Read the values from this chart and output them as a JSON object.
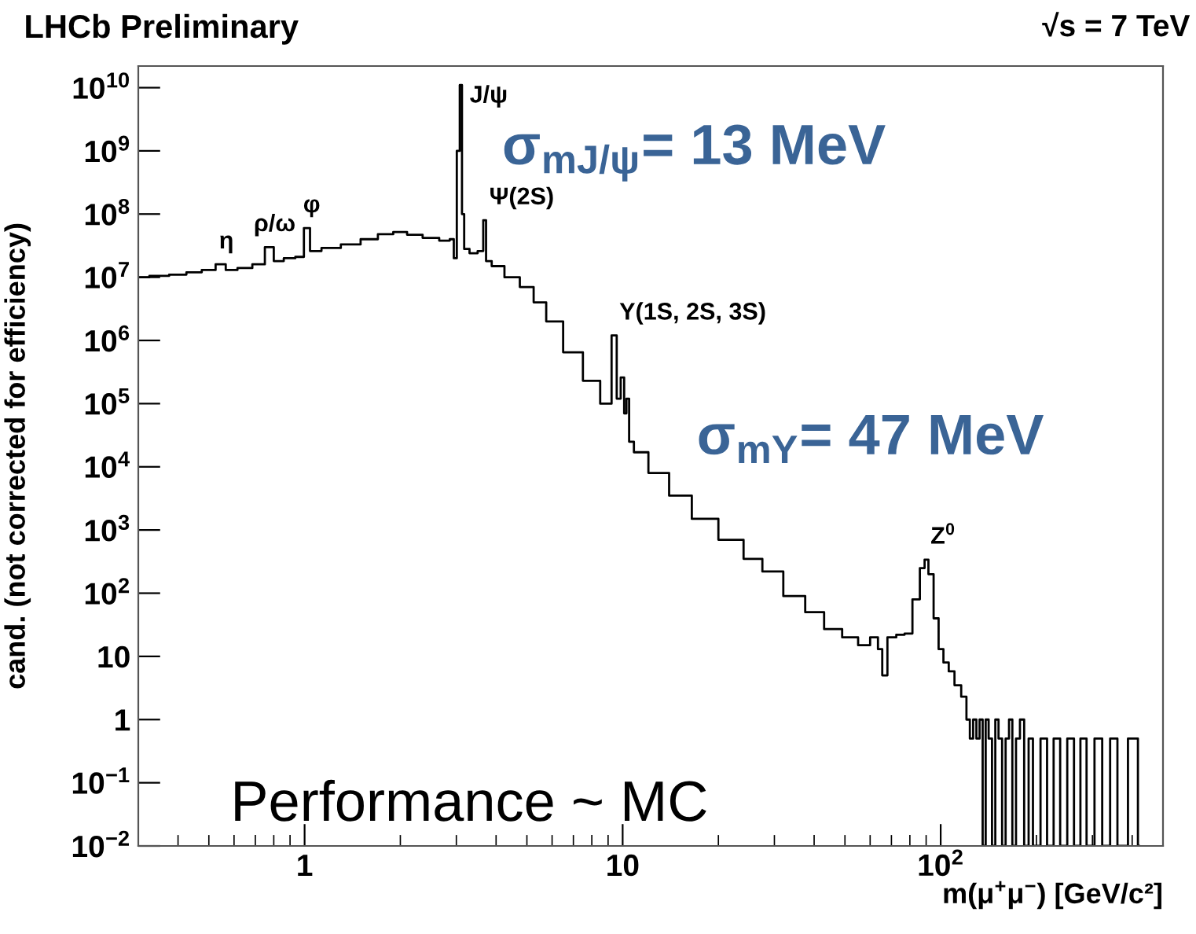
{
  "chart_data": {
    "type": "step",
    "title": "LHCb Preliminary",
    "ylabel": "cand. (not corrected for efficiency)",
    "xlabel": "m(μ$^{+}$μ$^{−}$) [GeV/c²]",
    "log": "xy",
    "grid": false,
    "xlim": [
      0.3,
      500
    ],
    "xticks": [
      1,
      10,
      {
        "value": 100,
        "label": "10$^{2}$"
      }
    ],
    "ylim": [
      0.01,
      22000000000.0
    ],
    "yticks": [
      {
        "value": 0.01,
        "label": "10$^{−2}$"
      },
      {
        "value": 0.1,
        "label": "10$^{−1}$"
      },
      1,
      10,
      {
        "value": 100,
        "label": "10$^{2}$"
      },
      {
        "value": 1000,
        "label": "10$^{3}$"
      },
      {
        "value": 10000,
        "label": "10$^{4}$"
      },
      {
        "value": 100000,
        "label": "10$^{5}$"
      },
      {
        "value": 1000000,
        "label": "10$^{6}$"
      },
      {
        "value": 10000000,
        "label": "10$^{7}$"
      },
      {
        "value": 100000000,
        "label": "10$^{8}$"
      },
      {
        "value": 1000000000,
        "label": "10$^{9}$"
      },
      {
        "value": 10000000000,
        "label": "10$^{10}$"
      }
    ],
    "series": [
      {
        "color": "#000000",
        "x": [
          0.3,
          0.35,
          0.4,
          0.45,
          0.5,
          0.55,
          0.58,
          0.65,
          0.72,
          0.78,
          0.82,
          0.9,
          0.97,
          1.02,
          1.06,
          1.2,
          1.4,
          1.6,
          1.8,
          2.0,
          2.2,
          2.5,
          2.8,
          2.92,
          2.97,
          3.05,
          3.1,
          3.15,
          3.2,
          3.4,
          3.6,
          3.69,
          3.75,
          4.0,
          4.5,
          5.0,
          5.5,
          6.0,
          7.0,
          8.0,
          9.0,
          9.46,
          9.7,
          10.02,
          10.2,
          10.36,
          10.6,
          11.1,
          13,
          15,
          18,
          22,
          26,
          29,
          35,
          40,
          46,
          52,
          58,
          62,
          65,
          66,
          70,
          75,
          79,
          84,
          88,
          90,
          93,
          97,
          100,
          104,
          108,
          113,
          119,
          122,
          125,
          128,
          131,
          134,
          137,
          140,
          143,
          147,
          150,
          154,
          158,
          162,
          166,
          170,
          175,
          180,
          186,
          192,
          198,
          214,
          218,
          235,
          240,
          260,
          265,
          285,
          290,
          319,
          325,
          357,
          362,
          414,
          420
        ],
        "values": [
          10000000.0,
          10500000.0,
          11000000.0,
          12000000.0,
          13000000.0,
          16000000.0,
          13000000.0,
          14000000.0,
          16000000.0,
          30000000.0,
          18000000.0,
          20000000.0,
          21000000.0,
          60000000.0,
          26000000.0,
          29000000.0,
          33000000.0,
          40000000.0,
          48000000.0,
          52000000.0,
          47000000.0,
          42000000.0,
          38000000.0,
          40000000.0,
          20000000.0,
          1000000000.0,
          11000000000.0,
          100000000.0,
          28000000.0,
          24000000.0,
          26000000.0,
          80000000.0,
          18000000.0,
          15000000.0,
          10000000.0,
          7000000.0,
          4000000.0,
          2000000.0,
          650000.0,
          230000.0,
          100000.0,
          1200000.0,
          120000.0,
          260000.0,
          70000.0,
          120000.0,
          25000.0,
          17000.0,
          8000,
          3500,
          1500,
          700,
          350,
          220,
          90,
          50,
          27,
          20,
          15,
          20,
          13,
          5,
          20,
          22,
          23,
          80,
          250,
          340,
          200,
          40,
          13,
          8,
          5.8,
          3.5,
          2.3,
          1,
          0.5,
          1,
          0.5,
          1,
          0.01,
          1,
          0.5,
          0.01,
          1,
          0.5,
          0.01,
          0.5,
          1,
          0.01,
          0.5,
          1,
          0.01,
          0.5,
          0.01,
          0.5,
          0.01,
          0.5,
          0.01,
          0.5,
          0.01,
          0.5,
          0.01,
          0.5,
          0.01,
          0.5,
          0.01,
          0.5,
          0.01
        ]
      }
    ],
    "annotations": [
      {
        "text": "η",
        "x": 0.55,
        "y": 16000000.0
      },
      {
        "text": "ρ/ω",
        "x": 0.78,
        "y": 30000000.0
      },
      {
        "text": "φ",
        "x": 1.02,
        "y": 60000000.0
      },
      {
        "text": "J/ψ",
        "x": 3.1,
        "y": 11000000000.0
      },
      {
        "text": "Ψ(2S)",
        "x": 3.69,
        "y": 80000000.0
      },
      {
        "text": "Υ(1S, 2S, 3S)",
        "x": 9.46,
        "y": 1200000.0
      },
      {
        "text": "Z$^{0}$",
        "x": 90,
        "y": 340
      },
      "√s = 7 TeV",
      "σ$_{mJ/ψ}$= 13 MeV",
      "σ$_{mΥ}$= 47 MeV",
      "Performance ~ MC"
    ]
  }
}
